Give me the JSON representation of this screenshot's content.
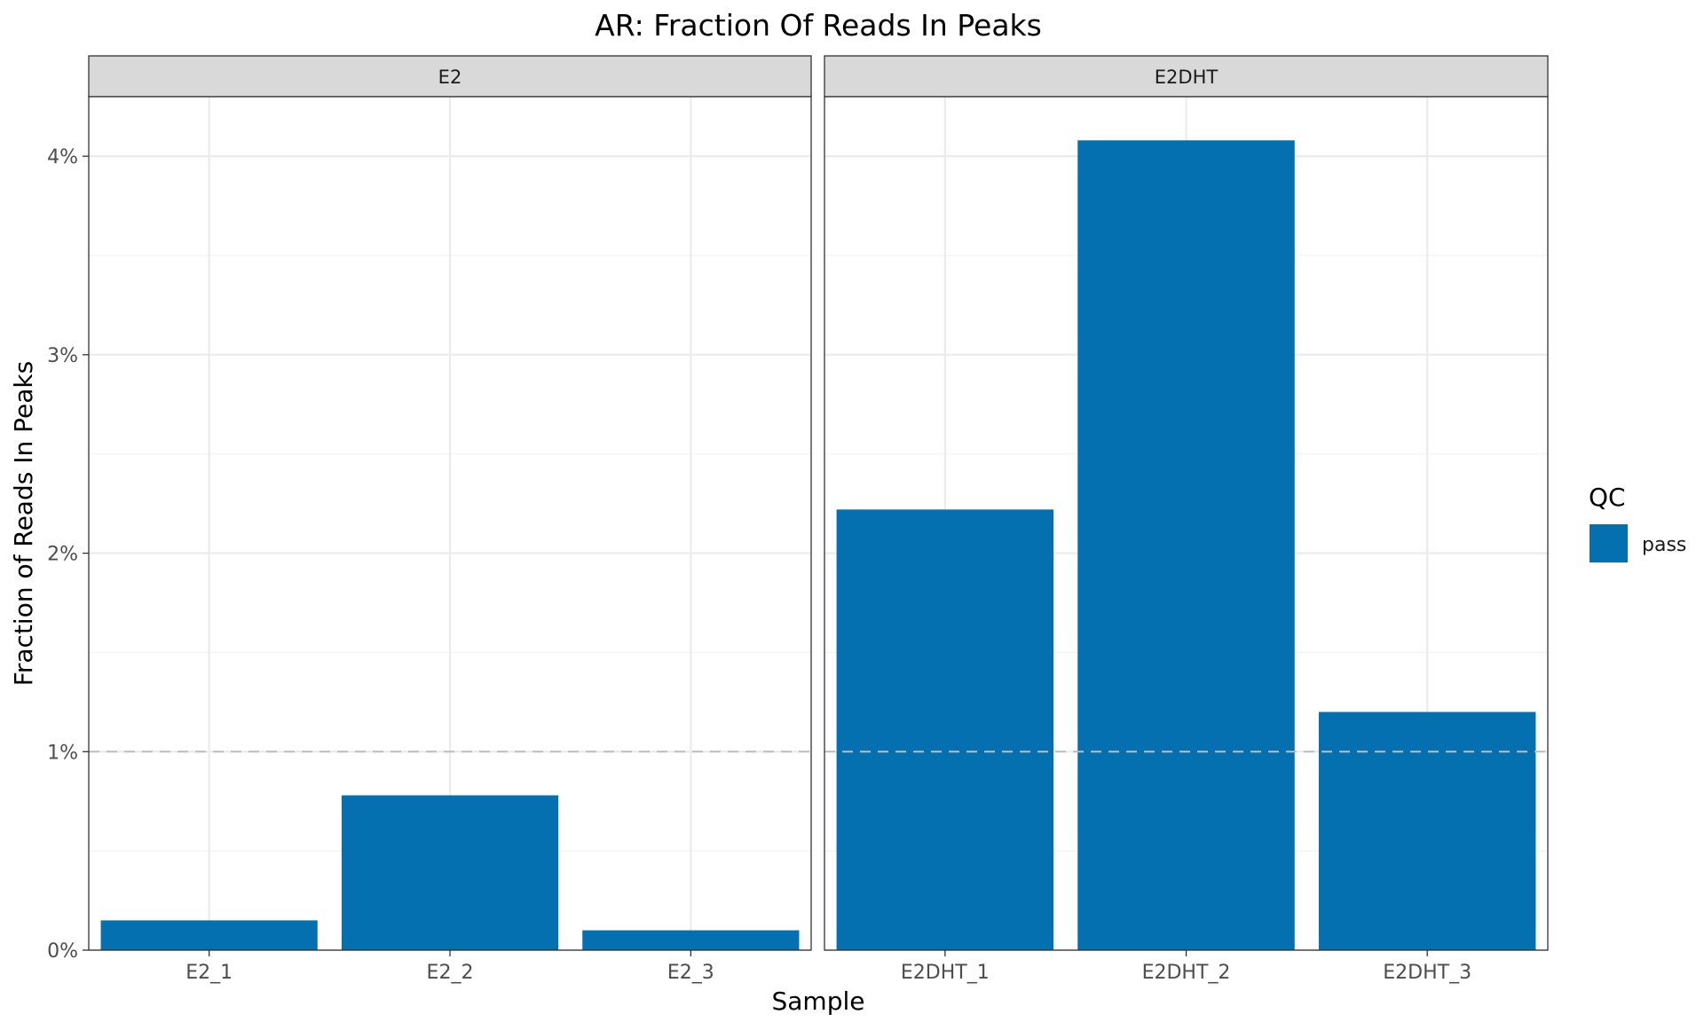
{
  "chart_data": {
    "type": "bar",
    "title": "AR: Fraction Of Reads In Peaks",
    "xlabel": "Sample",
    "ylabel": "Fraction of Reads In Peaks",
    "ylim": [
      0,
      0.043
    ],
    "y_ticks": [
      0,
      0.01,
      0.02,
      0.03,
      0.04
    ],
    "y_tick_labels": [
      "0%",
      "1%",
      "2%",
      "3%",
      "4%"
    ],
    "y_minor_ticks": [
      0.005,
      0.015,
      0.025,
      0.035
    ],
    "reference_line": {
      "y": 0.01,
      "style": "dashed",
      "color": "#bdbdbd"
    },
    "grid": true,
    "facets": [
      {
        "label": "E2",
        "categories": [
          "E2_1",
          "E2_2",
          "E2_3"
        ],
        "values": [
          0.0015,
          0.0078,
          0.001
        ]
      },
      {
        "label": "E2DHT",
        "categories": [
          "E2DHT_1",
          "E2DHT_2",
          "E2DHT_3"
        ],
        "values": [
          0.0222,
          0.0408,
          0.012
        ]
      }
    ],
    "bar_color": "#0570b0",
    "legend": {
      "title": "QC",
      "placement": "right",
      "entries": [
        {
          "label": "pass",
          "color": "#0570b0"
        }
      ]
    }
  }
}
